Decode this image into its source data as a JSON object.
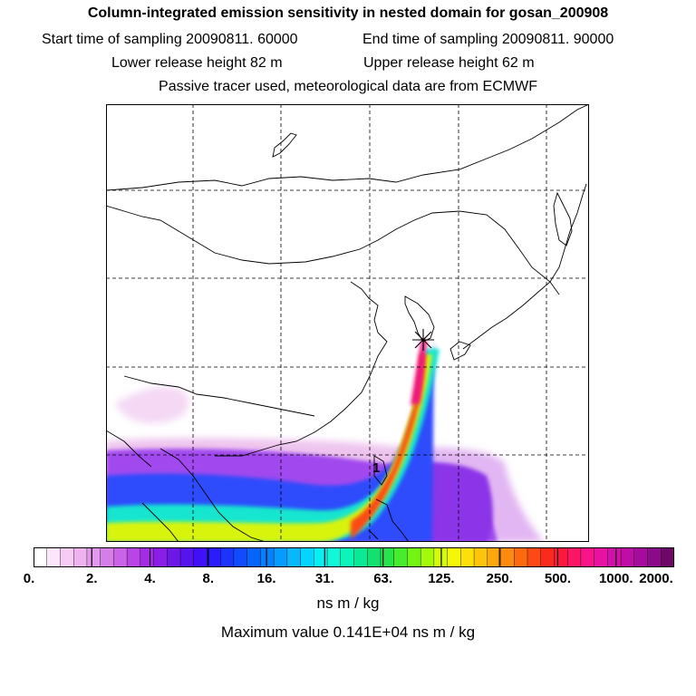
{
  "header": {
    "title": "Column-integrated emission sensitivity in nested domain for gosan_200908",
    "start_label": "Start time of sampling 20090811. 60000",
    "end_label": "End time of sampling 20090811. 90000",
    "lower_label": "Lower release height   82 m",
    "upper_label": "Upper release height   62 m",
    "tracer_note": "Passive tracer used, meteorological data are from ECMWF"
  },
  "map": {
    "release_marker": "star-icon",
    "track_label": "1"
  },
  "colorbar": {
    "tick_labels": [
      "0.",
      "2.",
      "4.",
      "8.",
      "16.",
      "31.",
      "63.",
      "125.",
      "250.",
      "500.",
      "1000.",
      "2000."
    ],
    "colors": [
      "#ffffff",
      "#fbe6fb",
      "#f4ccf4",
      "#eeb2ee",
      "#e298ec",
      "#d67ee8",
      "#c964e6",
      "#b845e4",
      "#a42ce6",
      "#8a1ee6",
      "#6e18e8",
      "#5514ee",
      "#3f12f6",
      "#2a1cfc",
      "#1c34fc",
      "#104cfc",
      "#0664fc",
      "#0480fc",
      "#069cfc",
      "#08b8fc",
      "#06d4fc",
      "#08f0f4",
      "#10f8d8",
      "#0cf4b8",
      "#0aea96",
      "#14e070",
      "#28e44a",
      "#48ec2c",
      "#74f414",
      "#a4fa0c",
      "#d4fc08",
      "#f4f808",
      "#fce00a",
      "#fcc40a",
      "#fca80c",
      "#fc8a0e",
      "#fc6a10",
      "#fc4a14",
      "#fc2a1c",
      "#fc1a3c",
      "#fc1666",
      "#f61488",
      "#e612a2",
      "#d410aa",
      "#be0ea6",
      "#a60c9c",
      "#8c0a8a",
      "#6e0868"
    ]
  },
  "units": "ns m / kg",
  "max_value_label": "Maximum value  0.141E+04 ns m / kg",
  "colors": {
    "coast": "#000000",
    "grid": "#000000"
  }
}
